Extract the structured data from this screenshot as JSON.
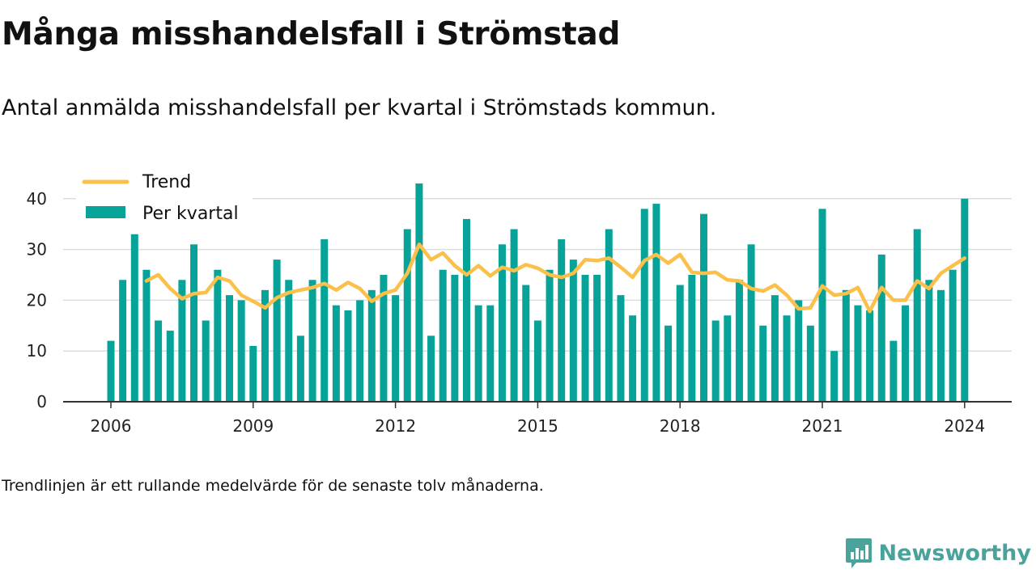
{
  "header": {
    "title": "Många misshandelsfall i Strömstad",
    "subtitle": "Antal anmälda misshandelsfall per kvartal i Strömstads kommun."
  },
  "footnote": "Trendlinjen är ett rullande medelvärde för de senaste tolv månaderna.",
  "brand": {
    "name": "Newsworthy",
    "icon": "newsworthy-logo-icon"
  },
  "colors": {
    "bars": "#07a399",
    "trend": "#fbc04a",
    "grid": "#dddddd",
    "axis": "#333333",
    "brand": "#4aa39b"
  },
  "chart_data": {
    "type": "bar",
    "x_unit": "quarter",
    "x_start": "2006 Q1",
    "xticks": [
      2006,
      2009,
      2012,
      2015,
      2018,
      2021,
      2024
    ],
    "ylim": [
      0,
      45
    ],
    "yticks": [
      0,
      10,
      20,
      30,
      40
    ],
    "grid": true,
    "legend_position": "top-left",
    "series": [
      {
        "name": "Per kvartal",
        "type": "bar",
        "values": [
          12,
          24,
          33,
          26,
          16,
          14,
          24,
          31,
          16,
          26,
          21,
          20,
          11,
          22,
          28,
          24,
          13,
          24,
          32,
          19,
          18,
          20,
          22,
          25,
          21,
          34,
          43,
          13,
          26,
          25,
          36,
          19,
          19,
          31,
          34,
          23,
          16,
          26,
          32,
          28,
          25,
          25,
          34,
          21,
          17,
          38,
          39,
          15,
          23,
          25,
          37,
          16,
          17,
          24,
          31,
          15,
          21,
          17,
          20,
          15,
          38,
          10,
          22,
          19,
          18,
          29,
          12,
          19,
          34,
          24,
          22,
          26,
          40
        ]
      },
      {
        "name": "Trend",
        "type": "line",
        "values": [
          null,
          null,
          null,
          23.8,
          25,
          22.3,
          20.3,
          21.3,
          21.5,
          24.5,
          23.8,
          21,
          19.8,
          18.5,
          20.5,
          21.5,
          22,
          22.5,
          23.3,
          22,
          23.5,
          22.3,
          19.8,
          21.3,
          22,
          25.3,
          31,
          28,
          29.3,
          26.8,
          25,
          26.8,
          24.8,
          26.5,
          25.8,
          27,
          26.3,
          25,
          24.5,
          25.3,
          28,
          27.8,
          28.3,
          26.5,
          24.5,
          27.8,
          29,
          27.3,
          29,
          25.5,
          25.3,
          25.5,
          24,
          23.8,
          22.3,
          21.8,
          23,
          21,
          18.3,
          18.5,
          22.8,
          21,
          21.3,
          22.5,
          17.8,
          22.5,
          20,
          20,
          23.8,
          22.3,
          25.3,
          26.8,
          28.3
        ]
      }
    ]
  }
}
